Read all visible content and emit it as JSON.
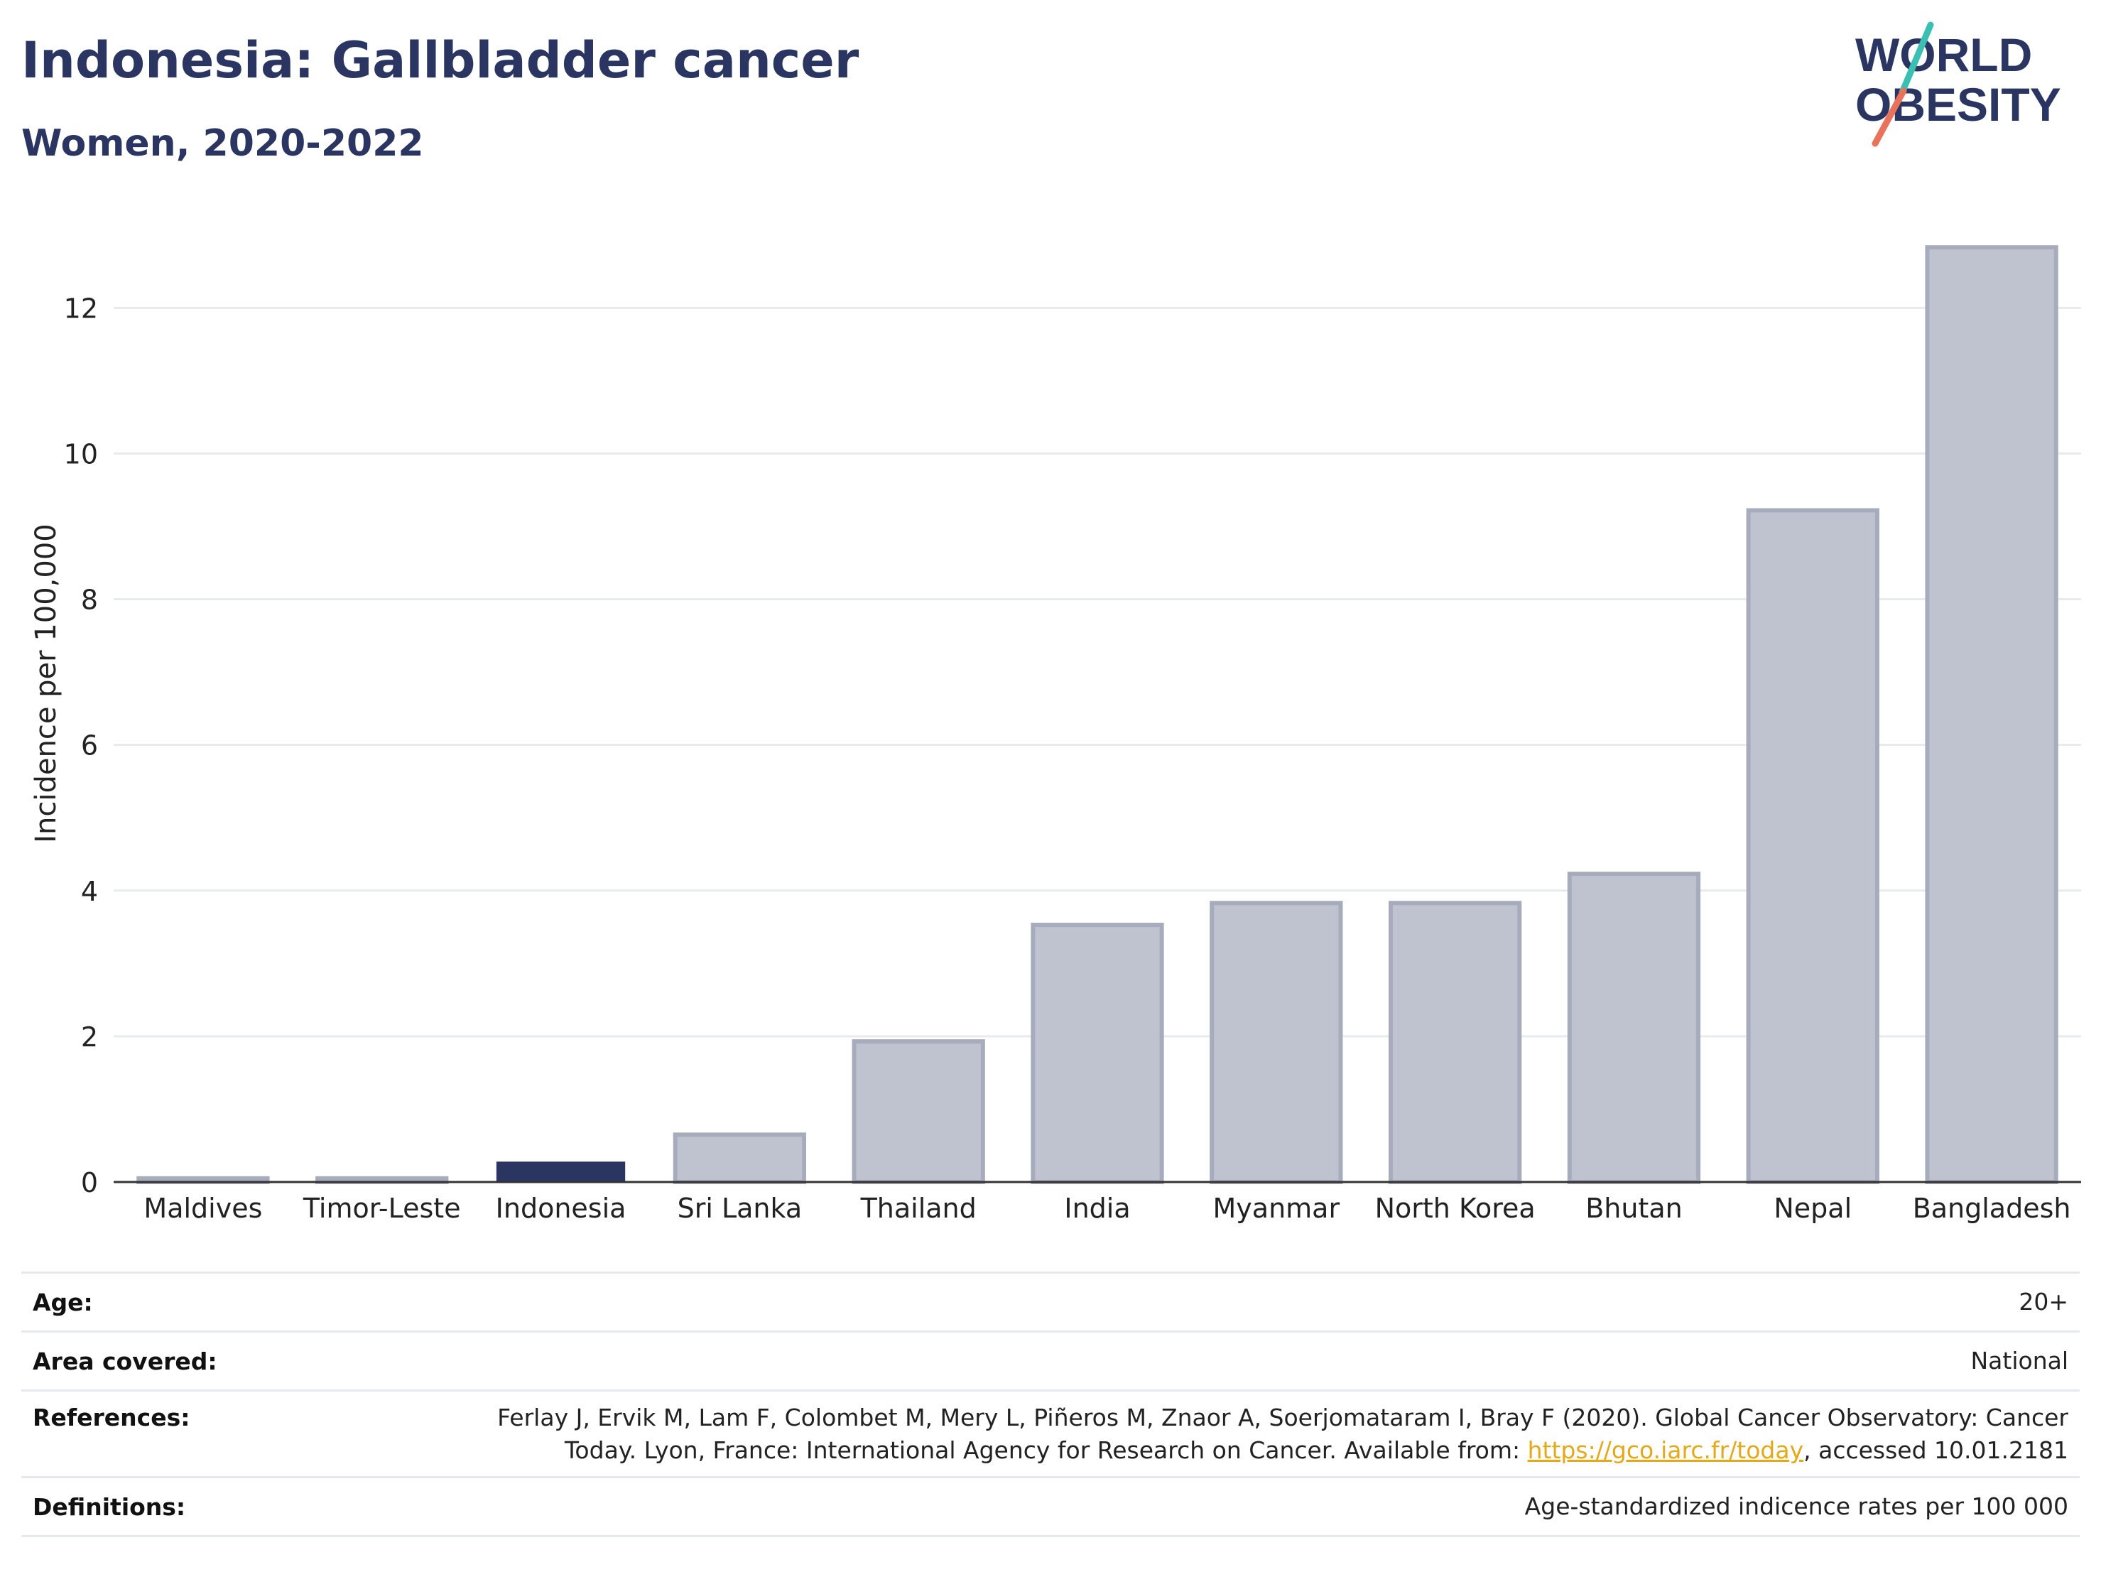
{
  "header": {
    "title": "Indonesia: Gallbladder cancer",
    "subtitle": "Women, 2020-2022"
  },
  "logo": {
    "line1": "WORLD",
    "line2": "OBESITY",
    "accent_teal": "#3bbfb3",
    "accent_coral": "#e8725a",
    "brand": "#2b3561"
  },
  "colors": {
    "highlight": "#2b3561",
    "other": "#bfc3d0",
    "other_border": "#a7acbd",
    "grid": "#e9eaee"
  },
  "chart_data": {
    "type": "bar",
    "categories": [
      "Maldives",
      "Timor-Leste",
      "Indonesia",
      "Sri Lanka",
      "Thailand",
      "India",
      "Myanmar",
      "North Korea",
      "Bhutan",
      "Nepal",
      "Bangladesh"
    ],
    "values": [
      0.05,
      0.05,
      0.28,
      0.65,
      1.93,
      3.53,
      3.83,
      3.83,
      4.23,
      9.22,
      12.83
    ],
    "highlight": "Indonesia",
    "xlabel": "",
    "ylabel": "Incidence per 100,000",
    "ylim": [
      0,
      13.3
    ],
    "yticks": [
      0,
      2,
      4,
      6,
      8,
      10,
      12
    ],
    "grid": true
  },
  "meta": {
    "age_label": "Age:",
    "age_value": "20+",
    "area_label": "Area covered:",
    "area_value": "National",
    "ref_label": "References:",
    "ref_line1": "Ferlay J, Ervik M, Lam F, Colombet M, Mery L, Piñeros M, Znaor A, Soerjomataram I, Bray F (2020). Global Cancer Observatory: Cancer",
    "ref_line2_pre": "Today. Lyon, France: International Agency for Research on Cancer. Available from: ",
    "ref_link": "https://gco.iarc.fr/today",
    "ref_line2_post": ", accessed 10.01.2181",
    "def_label": "Definitions:",
    "def_value": "Age-standardized indicence rates per 100 000"
  }
}
